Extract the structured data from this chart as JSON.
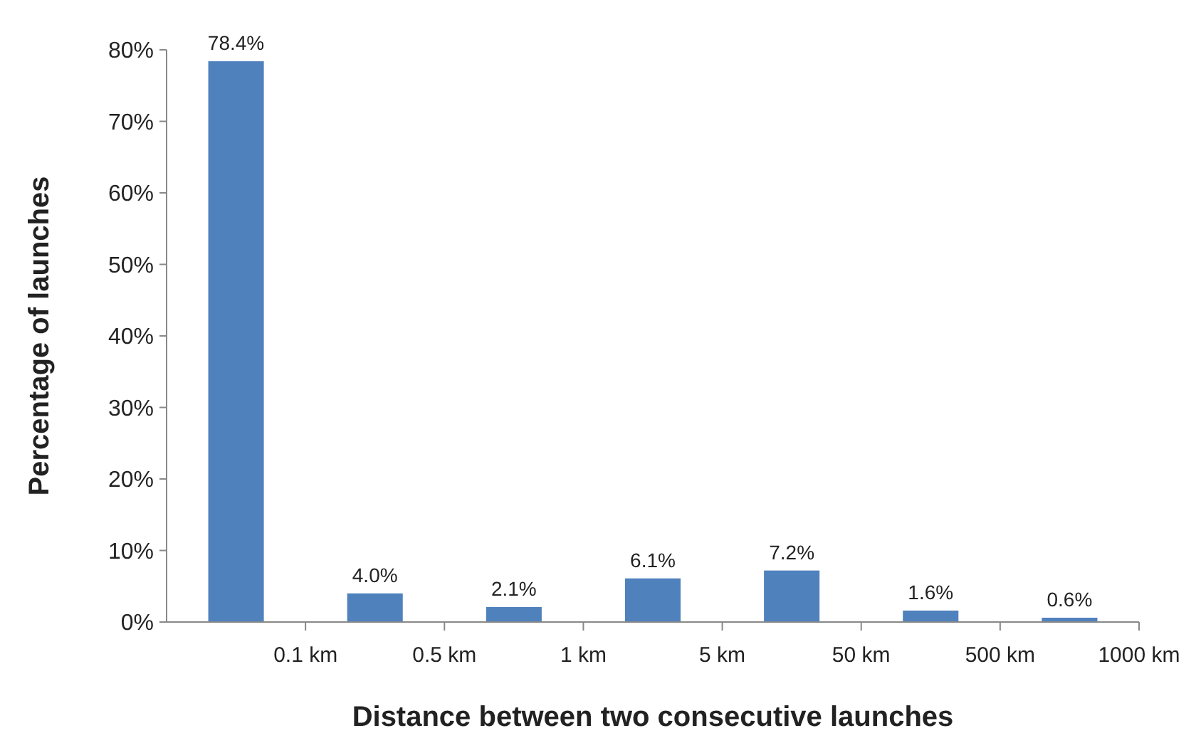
{
  "chart_data": {
    "type": "bar",
    "xlabel": "Distance between two consecutive launches",
    "ylabel": "Percentage of launches",
    "categories": [
      "0.1 km",
      "0.5 km",
      "1 km",
      "5 km",
      "50 km",
      "500 km",
      "1000 km"
    ],
    "values": [
      78.4,
      4.0,
      2.1,
      6.1,
      7.2,
      1.6,
      0.6
    ],
    "value_labels": [
      "78.4%",
      "4.0%",
      "2.1%",
      "6.1%",
      "7.2%",
      "1.6%",
      "0.6%"
    ],
    "color": "#4f81bd",
    "ylim": [
      0,
      80
    ],
    "yticks": [
      {
        "value": 0,
        "label": "0%"
      },
      {
        "value": 10,
        "label": "10%"
      },
      {
        "value": 20,
        "label": "20%"
      },
      {
        "value": 30,
        "label": "30%"
      },
      {
        "value": 40,
        "label": "40%"
      },
      {
        "value": 50,
        "label": "50%"
      },
      {
        "value": 60,
        "label": "60%"
      },
      {
        "value": 70,
        "label": "70%"
      },
      {
        "value": 80,
        "label": "80%"
      }
    ],
    "grid": false
  }
}
